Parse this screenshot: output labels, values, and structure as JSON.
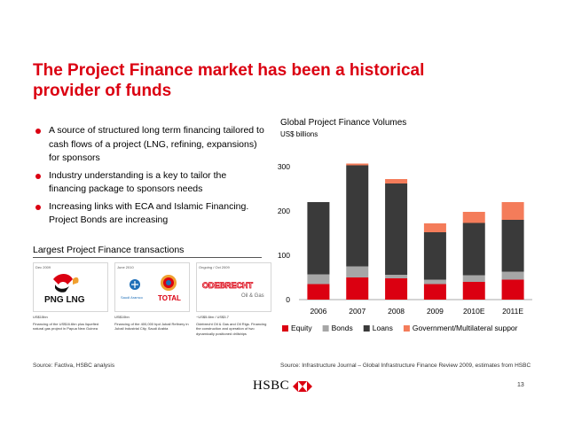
{
  "slide": {
    "title_line1": "The Project Finance market has been a historical",
    "title_line2": "provider of funds",
    "bullets": [
      "A source of structured long term financing tailored to cash flows of a project (LNG, refining, expansions) for sponsors",
      "Industry understanding is a key to tailor the financing package to sponsors needs",
      "Increasing links with ECA and Islamic Financing. Project Bonds are increasing"
    ],
    "transactions_heading": "Largest Project Finance transactions",
    "transactions": [
      {
        "date": "Dec 2009",
        "logo": "PNG LNG",
        "amount": "US$15bn",
        "desc": "Financing of the US$16.6bn plus liquefied natural gas project in Papua New Guinea"
      },
      {
        "date": "June 2010",
        "logo": "TOTAL",
        "logo_sub": "Saudi Aramco",
        "amount": "US$10bn",
        "desc": "Financing of the 400,000 bpd Jubail Refinery in Jubail Industrial City, Saudi Arabia"
      },
      {
        "date": "Ongoing / Oct 2009",
        "logo": "ODEBRECHT",
        "logo_sub": "Oil & Gas",
        "amount": "~US$5.6bn / US$3.7",
        "desc": "Odebrecht Oil & Gas and Oil Rigs. Financing the construction and operation of two dynamically positioned drillships"
      }
    ],
    "source_left": "Source: Factiva, HSBC analysis",
    "source_right": "Source: Infrastructure Journal – Global Infrastructure Finance Review 2009, estimates from HSBC",
    "brand": "HSBC",
    "page_number": "13"
  },
  "colors": {
    "accent": "#db0011",
    "equity": "#db0011",
    "bonds": "#a6a6a6",
    "loans": "#3a3a3a",
    "government": "#f47c5a"
  },
  "chart_data": {
    "type": "bar",
    "stacked": true,
    "title": "Global Project Finance Volumes",
    "unit": "US$ billions",
    "categories": [
      "2006",
      "2007",
      "2008",
      "2009",
      "2010E",
      "2011E"
    ],
    "series": [
      {
        "name": "Equity",
        "values": [
          35,
          50,
          48,
          35,
          40,
          45
        ]
      },
      {
        "name": "Bonds",
        "values": [
          22,
          25,
          8,
          10,
          15,
          18
        ]
      },
      {
        "name": "Loans",
        "values": [
          163,
          228,
          206,
          107,
          118,
          117
        ]
      },
      {
        "name": "Government/Multilateral suppor",
        "values": [
          0,
          4,
          10,
          20,
          25,
          40
        ]
      }
    ],
    "ylim": [
      0,
      300
    ],
    "yticks": [
      0,
      100,
      200,
      300
    ],
    "legend_position": "bottom",
    "grid": false
  }
}
